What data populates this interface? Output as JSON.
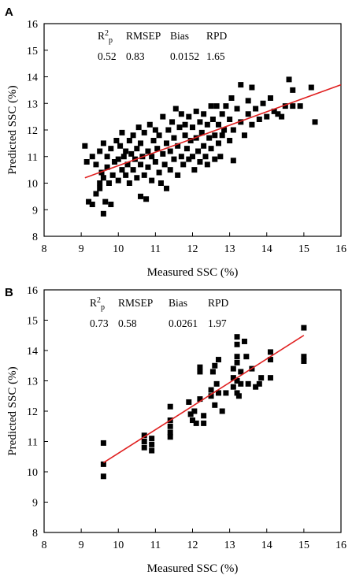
{
  "chart_data": [
    {
      "panel": "A",
      "type": "scatter",
      "xlabel": "Measured SSC (%)",
      "ylabel": "Predicted SSC (%)",
      "xlim": [
        8,
        16
      ],
      "ylim": [
        8,
        16
      ],
      "xticks": [
        "8",
        "9",
        "10",
        "11",
        "12",
        "13",
        "14",
        "15",
        "16"
      ],
      "yticks": [
        "8",
        "9",
        "10",
        "11",
        "12",
        "13",
        "14",
        "15",
        "16"
      ],
      "stats": {
        "headers": [
          "R2p",
          "RMSEP",
          "Bias",
          "RPD"
        ],
        "values": [
          "0.52",
          "0.83",
          "0.0152",
          "1.65"
        ]
      },
      "fit_line": {
        "x": [
          9.1,
          16
        ],
        "y": [
          10.2,
          13.7
        ],
        "color": "#e02020"
      },
      "marker_color": "#000000",
      "points": [
        [
          9.1,
          11.4
        ],
        [
          9.15,
          10.8
        ],
        [
          9.2,
          9.3
        ],
        [
          9.3,
          9.2
        ],
        [
          9.3,
          11.0
        ],
        [
          9.4,
          10.7
        ],
        [
          9.4,
          9.6
        ],
        [
          9.5,
          10.0
        ],
        [
          9.5,
          11.2
        ],
        [
          9.5,
          9.8
        ],
        [
          9.55,
          10.4
        ],
        [
          9.6,
          10.2
        ],
        [
          9.6,
          11.5
        ],
        [
          9.6,
          8.85
        ],
        [
          9.65,
          9.3
        ],
        [
          9.7,
          10.6
        ],
        [
          9.7,
          11.0
        ],
        [
          9.75,
          10.0
        ],
        [
          9.8,
          9.2
        ],
        [
          9.8,
          11.3
        ],
        [
          9.85,
          10.3
        ],
        [
          9.9,
          10.8
        ],
        [
          9.95,
          11.6
        ],
        [
          10.0,
          10.1
        ],
        [
          10.0,
          10.9
        ],
        [
          10.05,
          11.4
        ],
        [
          10.1,
          10.5
        ],
        [
          10.1,
          11.9
        ],
        [
          10.15,
          11.0
        ],
        [
          10.2,
          10.3
        ],
        [
          10.2,
          11.2
        ],
        [
          10.25,
          10.7
        ],
        [
          10.3,
          11.6
        ],
        [
          10.3,
          10.0
        ],
        [
          10.35,
          11.1
        ],
        [
          10.4,
          10.5
        ],
        [
          10.4,
          11.8
        ],
        [
          10.45,
          10.9
        ],
        [
          10.5,
          11.3
        ],
        [
          10.5,
          10.2
        ],
        [
          10.55,
          12.1
        ],
        [
          10.6,
          10.7
        ],
        [
          10.6,
          11.5
        ],
        [
          10.6,
          9.5
        ],
        [
          10.65,
          11.0
        ],
        [
          10.7,
          10.3
        ],
        [
          10.7,
          11.9
        ],
        [
          10.75,
          9.4
        ],
        [
          10.8,
          11.2
        ],
        [
          10.8,
          10.6
        ],
        [
          10.85,
          12.2
        ],
        [
          10.9,
          11.0
        ],
        [
          10.9,
          10.1
        ],
        [
          10.95,
          11.6
        ],
        [
          11.0,
          10.8
        ],
        [
          11.0,
          12.0
        ],
        [
          11.05,
          11.3
        ],
        [
          11.1,
          10.4
        ],
        [
          11.1,
          11.8
        ],
        [
          11.15,
          10.0
        ],
        [
          11.2,
          11.1
        ],
        [
          11.2,
          12.5
        ],
        [
          11.25,
          10.7
        ],
        [
          11.3,
          11.5
        ],
        [
          11.3,
          9.8
        ],
        [
          11.35,
          12.0
        ],
        [
          11.4,
          11.2
        ],
        [
          11.4,
          10.5
        ],
        [
          11.45,
          12.3
        ],
        [
          11.5,
          11.7
        ],
        [
          11.5,
          10.9
        ],
        [
          11.55,
          12.8
        ],
        [
          11.6,
          11.4
        ],
        [
          11.6,
          10.3
        ],
        [
          11.65,
          12.1
        ],
        [
          11.7,
          11.0
        ],
        [
          11.7,
          12.6
        ],
        [
          11.75,
          10.7
        ],
        [
          11.8,
          11.8
        ],
        [
          11.8,
          12.2
        ],
        [
          11.85,
          11.3
        ],
        [
          11.9,
          10.9
        ],
        [
          11.9,
          12.5
        ],
        [
          11.95,
          11.6
        ],
        [
          12.0,
          11.0
        ],
        [
          12.0,
          12.1
        ],
        [
          12.05,
          10.5
        ],
        [
          12.1,
          11.7
        ],
        [
          12.1,
          12.7
        ],
        [
          12.15,
          11.2
        ],
        [
          12.2,
          12.3
        ],
        [
          12.2,
          10.8
        ],
        [
          12.25,
          11.9
        ],
        [
          12.3,
          12.6
        ],
        [
          12.3,
          11.4
        ],
        [
          12.35,
          11.0
        ],
        [
          12.4,
          12.2
        ],
        [
          12.4,
          10.7
        ],
        [
          12.45,
          11.7
        ],
        [
          12.5,
          12.9
        ],
        [
          12.5,
          11.3
        ],
        [
          12.55,
          12.4
        ],
        [
          12.6,
          11.8
        ],
        [
          12.6,
          10.9
        ],
        [
          12.65,
          12.9
        ],
        [
          12.7,
          11.5
        ],
        [
          12.7,
          12.2
        ],
        [
          12.75,
          11.0
        ],
        [
          12.8,
          12.6
        ],
        [
          12.8,
          11.8
        ],
        [
          12.85,
          12.0
        ],
        [
          12.9,
          12.9
        ],
        [
          13.0,
          11.6
        ],
        [
          13.0,
          12.4
        ],
        [
          13.05,
          13.2
        ],
        [
          13.1,
          12.0
        ],
        [
          13.1,
          10.85
        ],
        [
          13.2,
          12.8
        ],
        [
          13.3,
          13.7
        ],
        [
          13.3,
          12.3
        ],
        [
          13.4,
          11.8
        ],
        [
          13.5,
          12.6
        ],
        [
          13.5,
          13.1
        ],
        [
          13.6,
          12.2
        ],
        [
          13.6,
          13.6
        ],
        [
          13.7,
          12.8
        ],
        [
          13.8,
          12.4
        ],
        [
          13.9,
          13.0
        ],
        [
          14.0,
          12.5
        ],
        [
          14.1,
          13.2
        ],
        [
          14.2,
          12.7
        ],
        [
          14.3,
          12.6
        ],
        [
          14.4,
          12.5
        ],
        [
          14.5,
          12.9
        ],
        [
          14.6,
          13.9
        ],
        [
          14.7,
          13.5
        ],
        [
          14.7,
          12.9
        ],
        [
          14.9,
          12.9
        ],
        [
          15.2,
          13.6
        ],
        [
          15.3,
          12.3
        ]
      ]
    },
    {
      "panel": "B",
      "type": "scatter",
      "xlabel": "Measured SSC (%)",
      "ylabel": "Predicted SSC (%)",
      "xlim": [
        8,
        16
      ],
      "ylim": [
        8,
        16
      ],
      "xticks": [
        "8",
        "9",
        "10",
        "11",
        "12",
        "13",
        "14",
        "15",
        "16"
      ],
      "yticks": [
        "8",
        "9",
        "10",
        "11",
        "12",
        "13",
        "14",
        "15",
        "16"
      ],
      "stats": {
        "headers": [
          "R2p",
          "RMSEP",
          "Bias",
          "RPD"
        ],
        "values": [
          "0.73",
          "0.58",
          "0.0261",
          "1.97"
        ]
      },
      "fit_line": {
        "x": [
          9.6,
          15.0
        ],
        "y": [
          10.3,
          14.5
        ],
        "color": "#e02020"
      },
      "marker_color": "#000000",
      "points": [
        [
          9.6,
          10.95
        ],
        [
          9.6,
          10.25
        ],
        [
          9.6,
          9.85
        ],
        [
          10.7,
          11.2
        ],
        [
          10.7,
          11.0
        ],
        [
          10.7,
          10.8
        ],
        [
          10.9,
          11.1
        ],
        [
          10.9,
          10.9
        ],
        [
          10.9,
          10.7
        ],
        [
          11.4,
          12.15
        ],
        [
          11.4,
          11.7
        ],
        [
          11.4,
          11.5
        ],
        [
          11.4,
          11.3
        ],
        [
          11.4,
          11.15
        ],
        [
          11.9,
          12.3
        ],
        [
          11.95,
          11.9
        ],
        [
          12.0,
          11.7
        ],
        [
          12.05,
          12.0
        ],
        [
          12.1,
          11.6
        ],
        [
          12.2,
          12.4
        ],
        [
          12.2,
          13.3
        ],
        [
          12.2,
          13.45
        ],
        [
          12.3,
          11.85
        ],
        [
          12.3,
          11.6
        ],
        [
          12.5,
          12.7
        ],
        [
          12.5,
          12.5
        ],
        [
          12.55,
          13.3
        ],
        [
          12.6,
          12.2
        ],
        [
          12.6,
          13.5
        ],
        [
          12.65,
          12.9
        ],
        [
          12.7,
          13.7
        ],
        [
          12.7,
          12.6
        ],
        [
          12.8,
          12.0
        ],
        [
          12.9,
          12.6
        ],
        [
          13.1,
          13.4
        ],
        [
          13.1,
          13.1
        ],
        [
          13.1,
          12.8
        ],
        [
          13.2,
          14.45
        ],
        [
          13.2,
          14.2
        ],
        [
          13.2,
          13.8
        ],
        [
          13.2,
          13.6
        ],
        [
          13.2,
          13.0
        ],
        [
          13.2,
          12.6
        ],
        [
          13.25,
          12.5
        ],
        [
          13.3,
          12.9
        ],
        [
          13.3,
          13.3
        ],
        [
          13.4,
          14.3
        ],
        [
          13.45,
          13.8
        ],
        [
          13.5,
          12.9
        ],
        [
          13.6,
          13.4
        ],
        [
          13.7,
          12.8
        ],
        [
          13.8,
          12.9
        ],
        [
          13.85,
          13.1
        ],
        [
          14.1,
          13.95
        ],
        [
          14.1,
          13.7
        ],
        [
          14.1,
          13.1
        ],
        [
          15.0,
          14.75
        ],
        [
          15.0,
          13.8
        ],
        [
          15.0,
          13.65
        ]
      ]
    }
  ]
}
